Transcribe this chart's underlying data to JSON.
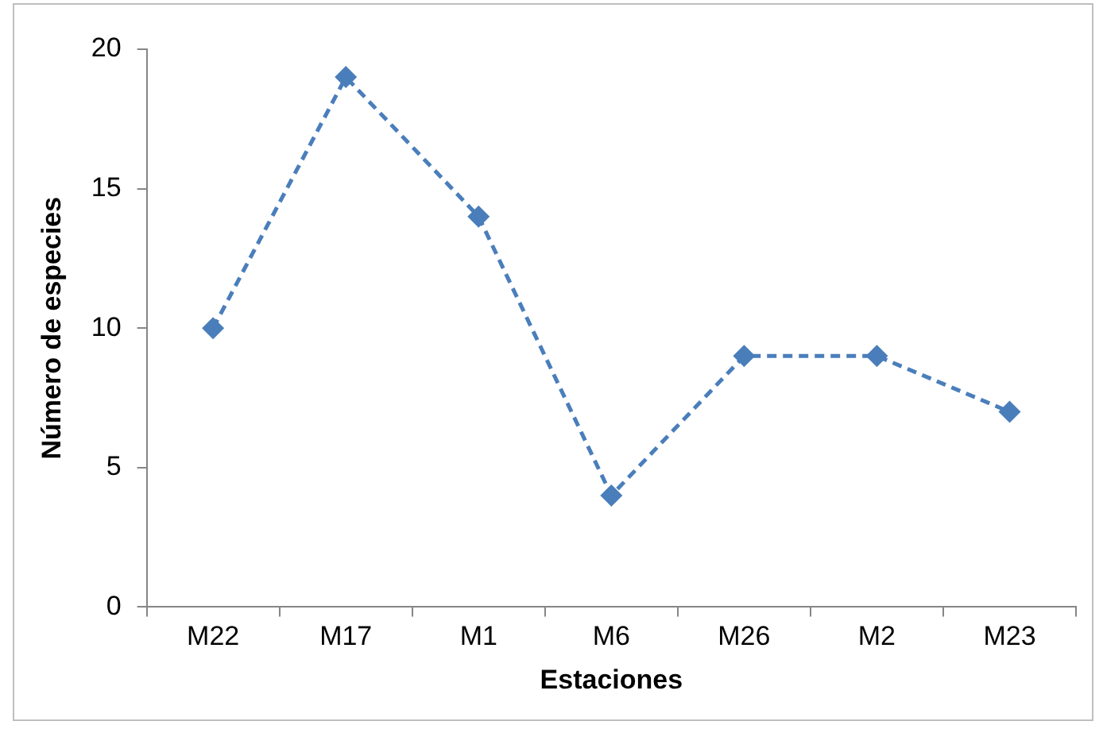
{
  "chart_data": {
    "type": "line",
    "xlabel": "Estaciones",
    "ylabel": "Número de especies",
    "categories": [
      "M22",
      "M17",
      "M1",
      "M6",
      "M26",
      "M2",
      "M23"
    ],
    "series": [
      {
        "color": "#4a7ebb",
        "values": [
          10,
          19,
          14,
          4,
          9,
          9,
          7
        ]
      }
    ],
    "ylim": [
      0,
      20
    ],
    "yticks": [
      0,
      5,
      10,
      15,
      20
    ],
    "grid": false,
    "legend": false,
    "marker": "diamond",
    "line_style": "dashed"
  }
}
